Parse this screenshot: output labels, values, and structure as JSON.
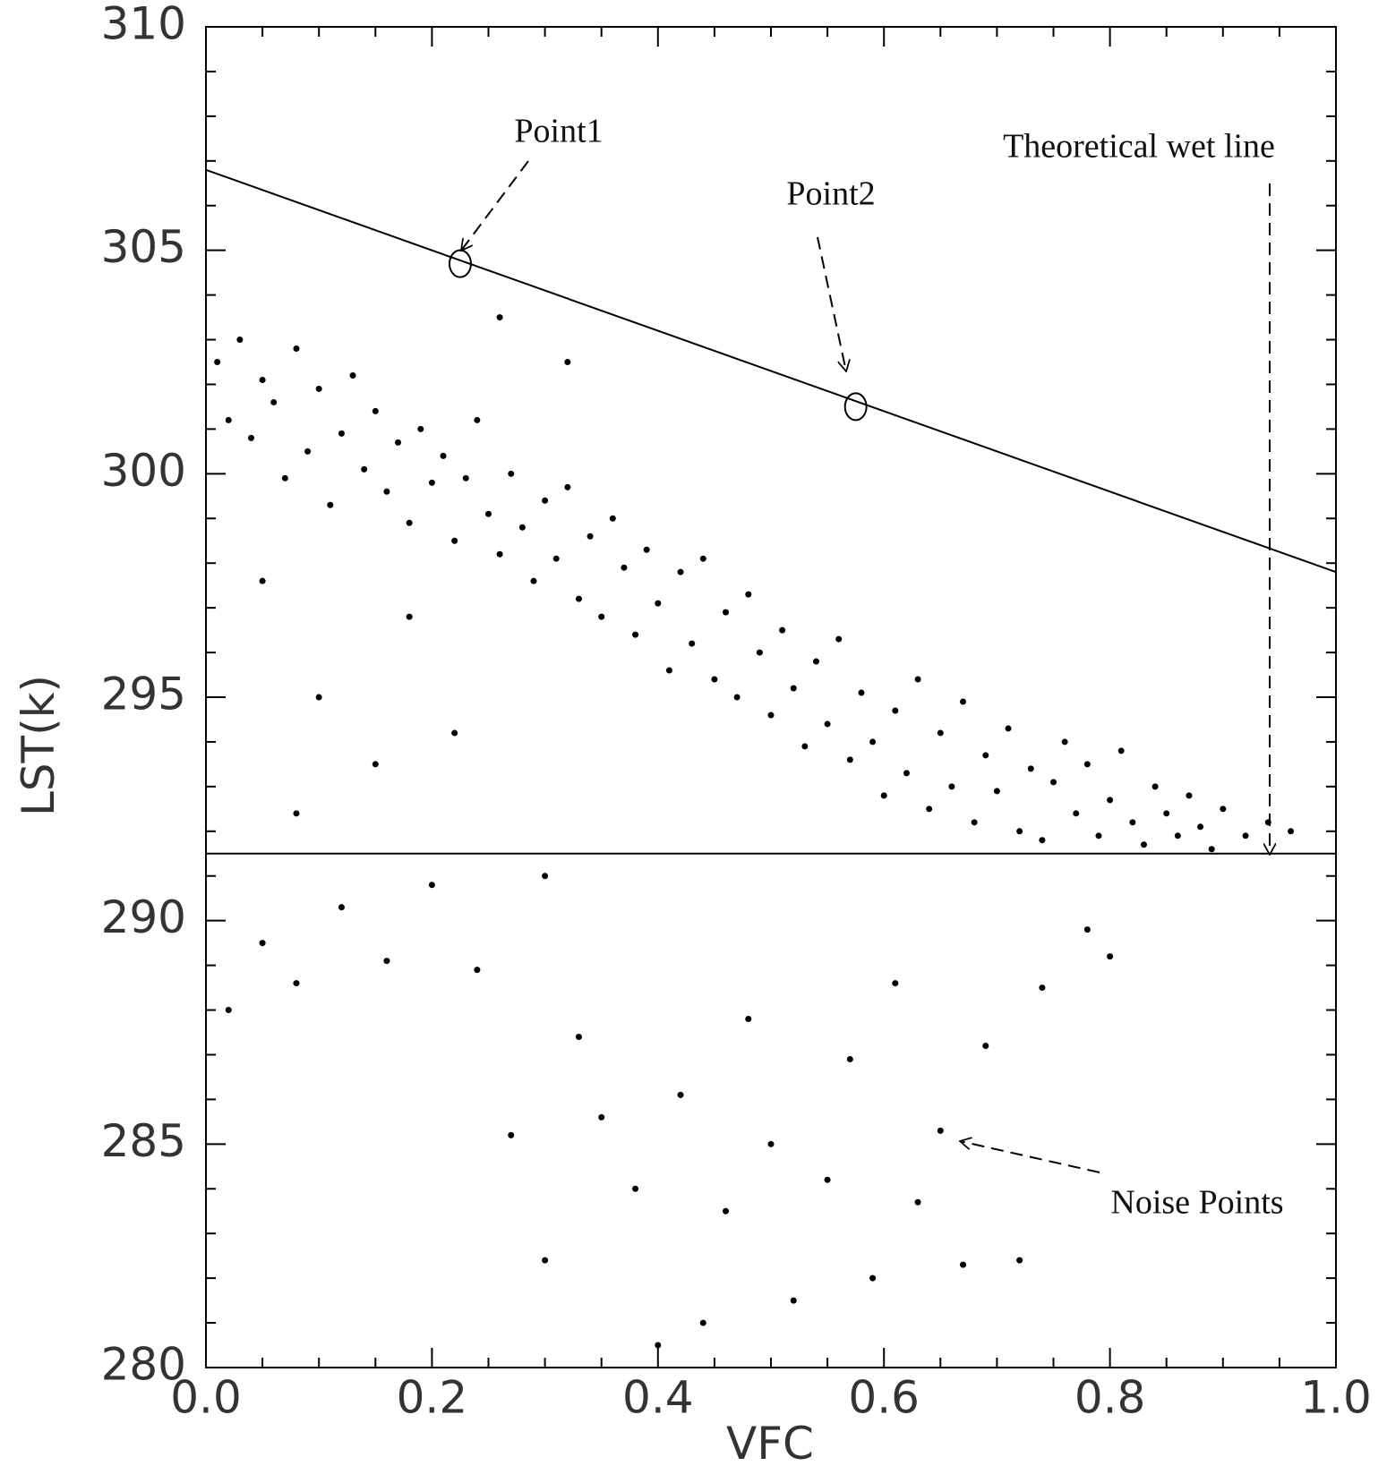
{
  "chart_data": {
    "type": "scatter",
    "xlabel": "VFC",
    "ylabel": "LST(k)",
    "xlim": [
      0,
      1
    ],
    "ylim": [
      280,
      310
    ],
    "xticks": [
      {
        "value": 0,
        "label": "0.0"
      },
      0.2,
      0.4,
      0.6,
      0.8,
      {
        "value": 1,
        "label": "1.0"
      }
    ],
    "yticks": [
      280,
      285,
      290,
      295,
      300,
      305,
      310
    ],
    "xminorticks": [
      0.05,
      0.1,
      0.15,
      0.25,
      0.3,
      0.35,
      0.45,
      0.5,
      0.55,
      0.65,
      0.7,
      0.75,
      0.85,
      0.9,
      0.95
    ],
    "yminorticks": [
      281,
      282,
      283,
      284,
      286,
      287,
      288,
      289,
      291,
      292,
      293,
      294,
      296,
      297,
      298,
      299,
      301,
      302,
      303,
      304,
      306,
      307,
      308,
      309
    ],
    "series": [
      {
        "color": "#000000",
        "x": [
          0.01,
          0.02,
          0.03,
          0.04,
          0.05,
          0.06,
          0.07,
          0.08,
          0.09,
          0.1,
          0.11,
          0.12,
          0.13,
          0.14,
          0.15,
          0.16,
          0.17,
          0.18,
          0.19,
          0.2,
          0.21,
          0.22,
          0.23,
          0.24,
          0.25,
          0.26,
          0.27,
          0.28,
          0.29,
          0.3,
          0.31,
          0.32,
          0.33,
          0.34,
          0.35,
          0.36,
          0.37,
          0.38,
          0.39,
          0.4,
          0.41,
          0.42,
          0.43,
          0.44,
          0.45,
          0.46,
          0.47,
          0.48,
          0.49,
          0.5,
          0.51,
          0.52,
          0.53,
          0.54,
          0.55,
          0.56,
          0.57,
          0.58,
          0.59,
          0.6,
          0.61,
          0.62,
          0.63,
          0.64,
          0.65,
          0.66,
          0.67,
          0.68,
          0.69,
          0.7,
          0.71,
          0.72,
          0.73,
          0.74,
          0.75,
          0.76,
          0.77,
          0.78,
          0.79,
          0.8,
          0.81,
          0.82,
          0.83,
          0.84,
          0.85,
          0.86,
          0.87,
          0.88,
          0.89,
          0.9,
          0.92,
          0.94,
          0.96,
          0.02,
          0.05,
          0.08,
          0.12,
          0.16,
          0.2,
          0.24,
          0.27,
          0.3,
          0.33,
          0.35,
          0.38,
          0.4,
          0.42,
          0.44,
          0.46,
          0.48,
          0.5,
          0.52,
          0.55,
          0.57,
          0.59,
          0.61,
          0.63,
          0.65,
          0.67,
          0.69,
          0.72,
          0.74,
          0.78,
          0.8,
          0.05,
          0.1,
          0.15,
          0.08,
          0.22,
          0.3,
          0.18,
          0.26,
          0.32
        ],
        "values": [
          302.5,
          301.2,
          303.0,
          300.8,
          302.1,
          301.6,
          299.9,
          302.8,
          300.5,
          301.9,
          299.3,
          300.9,
          302.2,
          300.1,
          301.4,
          299.6,
          300.7,
          298.9,
          301.0,
          299.8,
          300.4,
          298.5,
          299.9,
          301.2,
          299.1,
          298.2,
          300.0,
          298.8,
          297.6,
          299.4,
          298.1,
          299.7,
          297.2,
          298.6,
          296.8,
          299.0,
          297.9,
          296.4,
          298.3,
          297.1,
          295.6,
          297.8,
          296.2,
          298.1,
          295.4,
          296.9,
          295.0,
          297.3,
          296.0,
          294.6,
          296.5,
          295.2,
          293.9,
          295.8,
          294.4,
          296.3,
          293.6,
          295.1,
          294.0,
          292.8,
          294.7,
          293.3,
          295.4,
          292.5,
          294.2,
          293.0,
          294.9,
          292.2,
          293.7,
          292.9,
          294.3,
          292.0,
          293.4,
          291.8,
          293.1,
          294.0,
          292.4,
          293.5,
          291.9,
          292.7,
          293.8,
          292.2,
          291.7,
          293.0,
          292.4,
          291.9,
          292.8,
          292.1,
          291.6,
          292.5,
          291.9,
          292.2,
          292.0,
          288.0,
          289.5,
          288.6,
          290.3,
          289.1,
          290.8,
          288.9,
          285.2,
          282.4,
          287.4,
          285.6,
          284.0,
          280.5,
          286.1,
          281.0,
          283.5,
          287.8,
          285.0,
          281.5,
          284.2,
          286.9,
          282.0,
          288.6,
          283.7,
          285.3,
          282.3,
          287.2,
          282.4,
          288.5,
          289.8,
          289.2,
          297.6,
          295.0,
          293.5,
          292.4,
          294.2,
          291.0,
          296.8,
          303.5,
          302.5
        ]
      }
    ],
    "lines": [
      {
        "x": [
          0,
          1
        ],
        "values": [
          306.8,
          297.8
        ]
      },
      {
        "x": [
          0,
          1
        ],
        "values": [
          291.5,
          291.5
        ]
      }
    ],
    "highlighted_points": {
      "x": [
        0.225,
        0.575
      ],
      "values": [
        304.7,
        301.5
      ]
    },
    "annotations": [
      "Point1",
      "Point2",
      "Theoretical wet line",
      "Noise Points"
    ]
  }
}
